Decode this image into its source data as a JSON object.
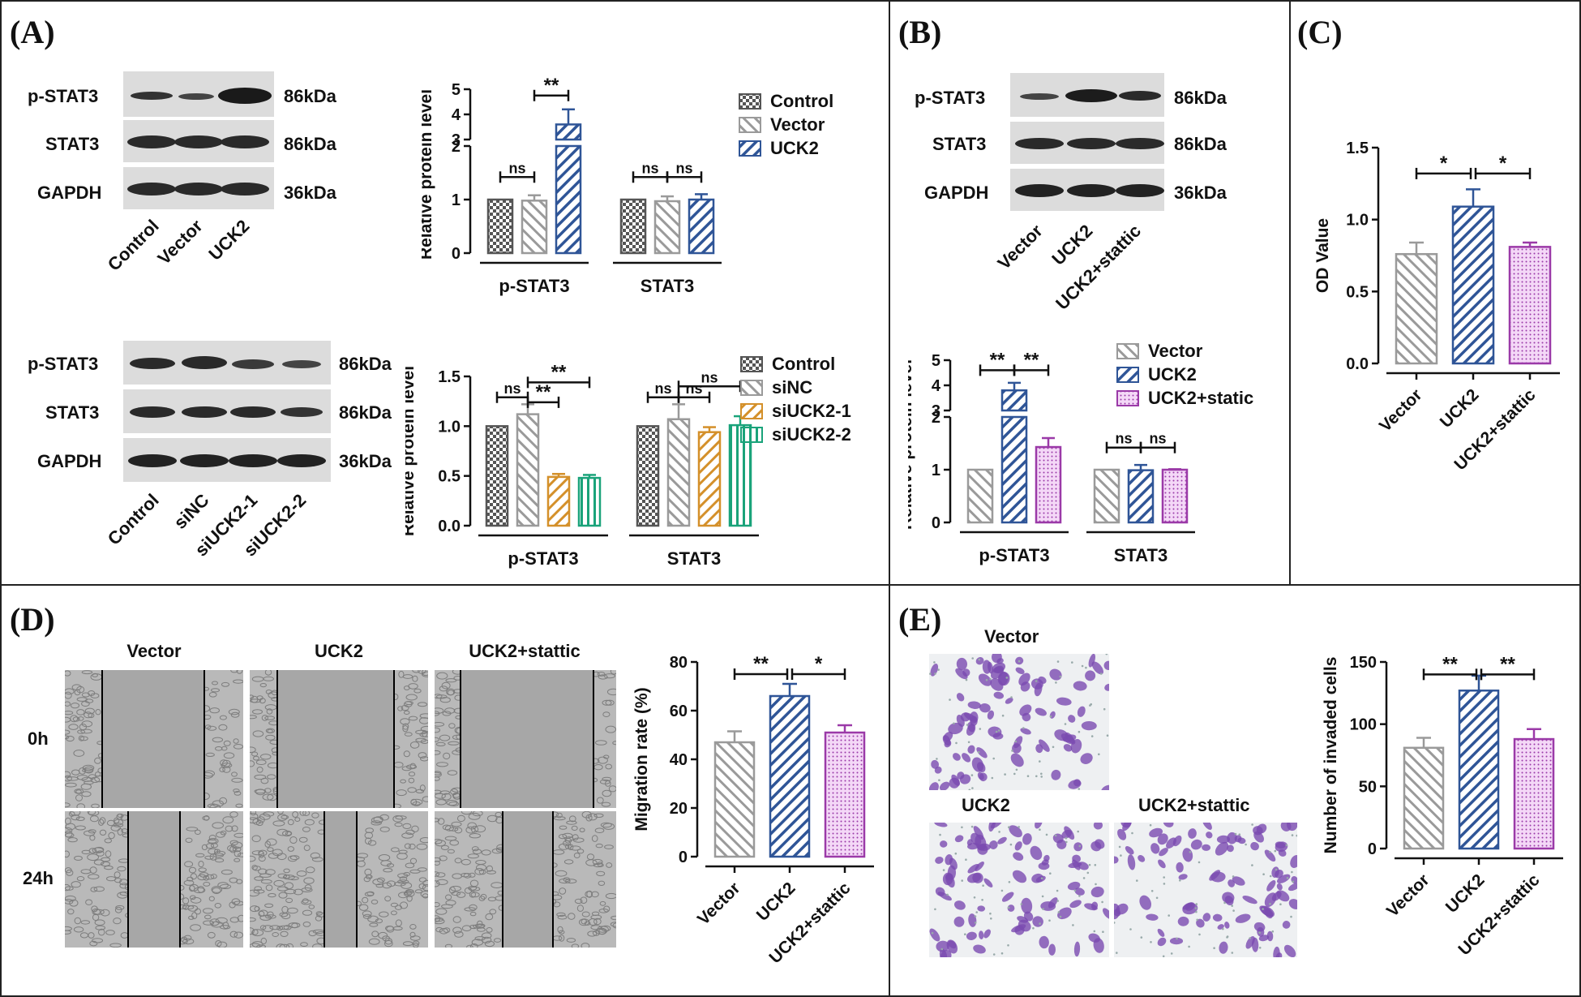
{
  "panels": {
    "A": "(A)",
    "B": "(B)",
    "C": "(C)",
    "D": "(D)",
    "E": "(E)"
  },
  "colors": {
    "control": "#555555",
    "vector": "#9a9a9a",
    "uck2": "#2f5597",
    "sinc": "#9a9a9a",
    "siuck2_1": "#d4902a",
    "siuck2_2": "#1aa37a",
    "static": "#9b3aa8"
  },
  "blots": {
    "A_top": {
      "rows": [
        {
          "name": "p-STAT3",
          "mw": "86kDa"
        },
        {
          "name": "STAT3",
          "mw": "86kDa"
        },
        {
          "name": "GAPDH",
          "mw": "36kDa"
        }
      ],
      "lanes": [
        "Control",
        "Vector",
        "UCK2"
      ]
    },
    "A_bottom": {
      "rows": [
        {
          "name": "p-STAT3",
          "mw": "86kDa"
        },
        {
          "name": "STAT3",
          "mw": "86kDa"
        },
        {
          "name": "GAPDH",
          "mw": "36kDa"
        }
      ],
      "lanes": [
        "Control",
        "siNC",
        "siUCK2-1",
        "siUCK2-2"
      ]
    },
    "B": {
      "rows": [
        {
          "name": "p-STAT3",
          "mw": "86kDa"
        },
        {
          "name": "STAT3",
          "mw": "86kDa"
        },
        {
          "name": "GAPDH",
          "mw": "36kDa"
        }
      ],
      "lanes": [
        "Vector",
        "UCK2",
        "UCK2+stattic"
      ]
    }
  },
  "chart_data": [
    {
      "id": "A1",
      "type": "bar",
      "ylabel": "Relative protein level",
      "broken_axis": true,
      "yticks_lower": [
        "0",
        "1",
        "2"
      ],
      "yticks_upper": [
        "3",
        "4",
        "5"
      ],
      "groups": [
        "p-STAT3",
        "STAT3"
      ],
      "series": [
        {
          "name": "Control",
          "values": [
            1.0,
            1.0
          ],
          "errors": [
            0,
            0
          ]
        },
        {
          "name": "Vector",
          "values": [
            0.98,
            0.97
          ],
          "errors": [
            0.1,
            0.09
          ]
        },
        {
          "name": "UCK2",
          "values": [
            3.6,
            1.0
          ],
          "errors": [
            0.6,
            0.1
          ]
        }
      ],
      "sig": [
        "ns",
        "**",
        "ns",
        "ns"
      ]
    },
    {
      "id": "A2",
      "type": "bar",
      "ylabel": "Relative protein level",
      "ylim": [
        0,
        1.5
      ],
      "yticks": [
        "0.0",
        "0.5",
        "1.0",
        "1.5"
      ],
      "groups": [
        "p-STAT3",
        "STAT3"
      ],
      "series": [
        {
          "name": "Control",
          "values": [
            1.0,
            1.0
          ],
          "errors": [
            0,
            0
          ]
        },
        {
          "name": "siNC",
          "values": [
            1.12,
            1.07
          ],
          "errors": [
            0.1,
            0.15
          ]
        },
        {
          "name": "siUCK2-1",
          "values": [
            0.49,
            0.94
          ],
          "errors": [
            0.03,
            0.05
          ]
        },
        {
          "name": "siUCK2-2",
          "values": [
            0.48,
            1.01
          ],
          "errors": [
            0.03,
            0.09
          ]
        }
      ],
      "sig": [
        "ns",
        "**",
        "**",
        "ns",
        "ns",
        "ns"
      ]
    },
    {
      "id": "B",
      "type": "bar",
      "ylabel": "Relative protein level",
      "broken_axis": true,
      "yticks_lower": [
        "0",
        "1",
        "2"
      ],
      "yticks_upper": [
        "3",
        "4",
        "5"
      ],
      "groups": [
        "p-STAT3",
        "STAT3"
      ],
      "series": [
        {
          "name": "Vector",
          "values": [
            1.0,
            1.0
          ],
          "errors": [
            0,
            0
          ]
        },
        {
          "name": "UCK2",
          "values": [
            3.8,
            0.99
          ],
          "errors": [
            0.3,
            0.1
          ]
        },
        {
          "name": "UCK2+static",
          "values": [
            1.43,
            1.0
          ],
          "errors": [
            0.17,
            0.01
          ]
        }
      ],
      "sig": [
        "**",
        "**",
        "ns",
        "ns"
      ]
    },
    {
      "id": "C",
      "type": "bar",
      "ylabel": "OD Value",
      "ylim": [
        0,
        1.5
      ],
      "yticks": [
        "0.0",
        "0.5",
        "1.0",
        "1.5"
      ],
      "categories": [
        "Vector",
        "UCK2",
        "UCK2+stattic"
      ],
      "values": [
        0.76,
        1.09,
        0.81
      ],
      "errors": [
        0.08,
        0.12,
        0.03
      ],
      "sig": [
        "*",
        "*"
      ]
    },
    {
      "id": "D",
      "type": "bar",
      "ylabel": "Migration rate (%)",
      "ylim": [
        0,
        80
      ],
      "yticks": [
        "0",
        "20",
        "40",
        "60",
        "80"
      ],
      "categories": [
        "Vector",
        "UCK2",
        "UCK2+stattic"
      ],
      "values": [
        47,
        66,
        51
      ],
      "errors": [
        4.5,
        5,
        3
      ],
      "sig": [
        "**",
        "*"
      ]
    },
    {
      "id": "E",
      "type": "bar",
      "ylabel": "Number of invaded cells",
      "ylim": [
        0,
        150
      ],
      "yticks": [
        "0",
        "50",
        "100",
        "150"
      ],
      "categories": [
        "Vector",
        "UCK2",
        "UCK2+stattic"
      ],
      "values": [
        81,
        127,
        88
      ],
      "errors": [
        8,
        12,
        8
      ],
      "sig": [
        "**",
        "**"
      ]
    }
  ],
  "migration": {
    "columns": [
      "Vector",
      "UCK2",
      "UCK2+stattic"
    ],
    "rows": [
      "0h",
      "24h"
    ]
  },
  "invasion": {
    "labels": [
      "Vector",
      "UCK2",
      "UCK2+stattic"
    ]
  }
}
